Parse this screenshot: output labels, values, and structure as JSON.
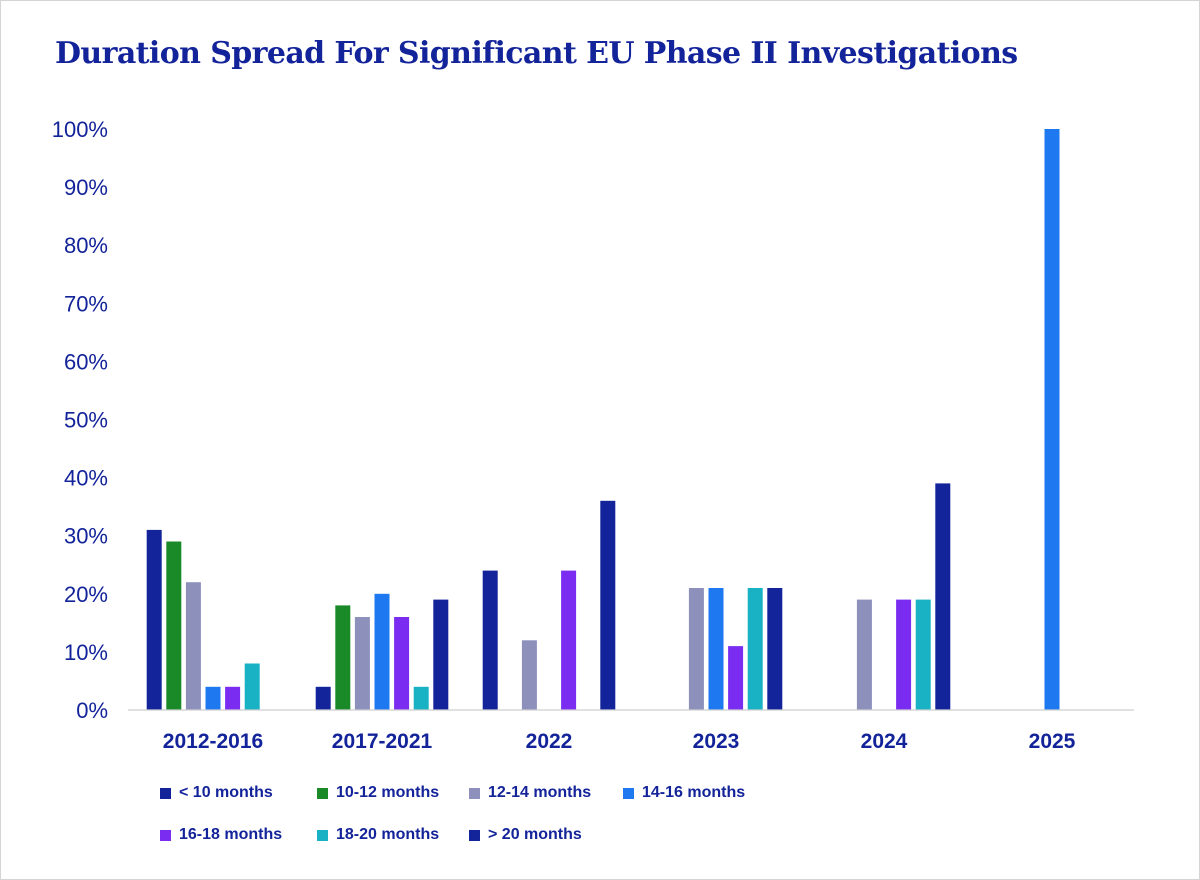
{
  "chart_data": {
    "type": "bar",
    "title": "Duration Spread For Significant EU Phase II Investigations",
    "xlabel": "",
    "ylabel": "",
    "ylim": [
      0,
      100
    ],
    "yticks": [
      "0%",
      "10%",
      "20%",
      "30%",
      "40%",
      "50%",
      "60%",
      "70%",
      "80%",
      "90%",
      "100%"
    ],
    "grid": false,
    "legend_position": "bottom",
    "categories": [
      "2012-2016",
      "2017-2021",
      "2022",
      "2023",
      "2024",
      "2025"
    ],
    "series": [
      {
        "name": "< 10 months",
        "color": "#13239a",
        "values": [
          31,
          4,
          24,
          0,
          0,
          0
        ]
      },
      {
        "name": "10-12 months",
        "color": "#1a8a28",
        "values": [
          29,
          18,
          0,
          0,
          0,
          0
        ]
      },
      {
        "name": "12-14 months",
        "color": "#8c90bb",
        "values": [
          22,
          16,
          12,
          21,
          19,
          0
        ]
      },
      {
        "name": "14-16 months",
        "color": "#1e78f0",
        "values": [
          4,
          20,
          0,
          21,
          0,
          100
        ]
      },
      {
        "name": "16-18 months",
        "color": "#7a2df0",
        "values": [
          4,
          16,
          24,
          11,
          19,
          0
        ]
      },
      {
        "name": "18-20 months",
        "color": "#19b2c4",
        "values": [
          8,
          4,
          0,
          21,
          19,
          0
        ]
      },
      {
        "name": "> 20 months",
        "color": "#13239a",
        "values": [
          0,
          19,
          36,
          21,
          39,
          0
        ]
      }
    ]
  }
}
